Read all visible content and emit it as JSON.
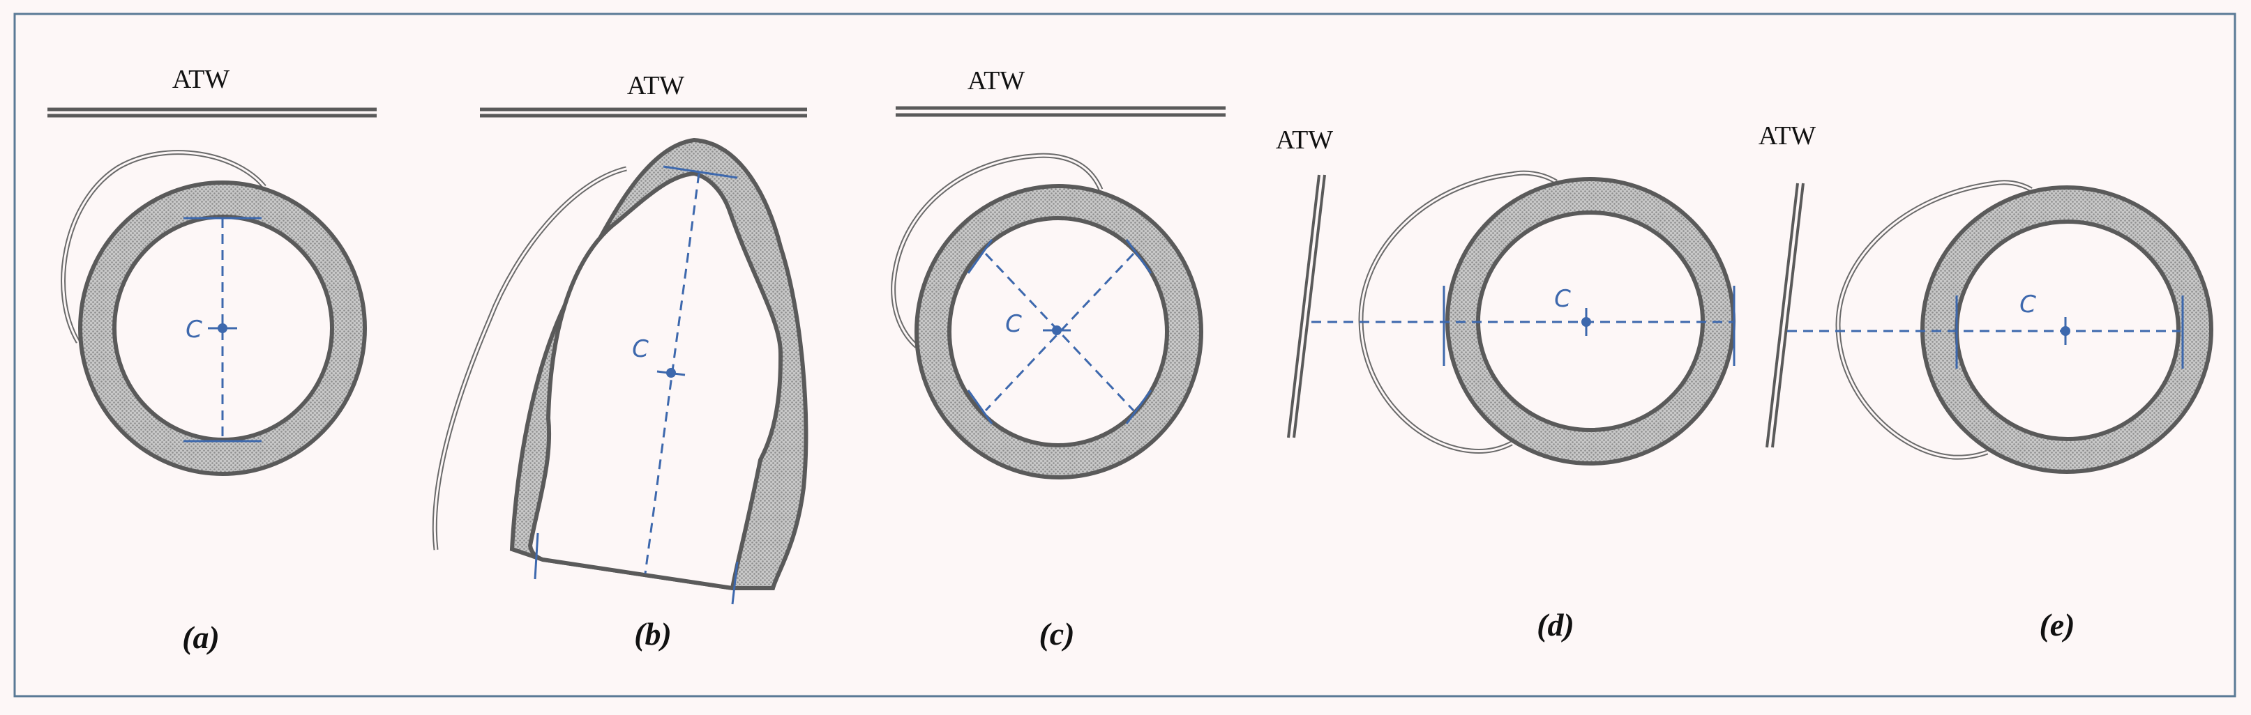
{
  "figure": {
    "wall_label": "ATW",
    "center_label": "C",
    "panels": [
      {
        "label": "(a)"
      },
      {
        "label": "(b)"
      },
      {
        "label": "(c)"
      },
      {
        "label": "(d)"
      },
      {
        "label": "(e)"
      }
    ],
    "colors": {
      "background": "#fdf7f7",
      "frame": "#5a7a96",
      "wall": "#5a5a5a",
      "wall_fill": "#bcbcbc",
      "measure": "#3d68ad"
    }
  }
}
